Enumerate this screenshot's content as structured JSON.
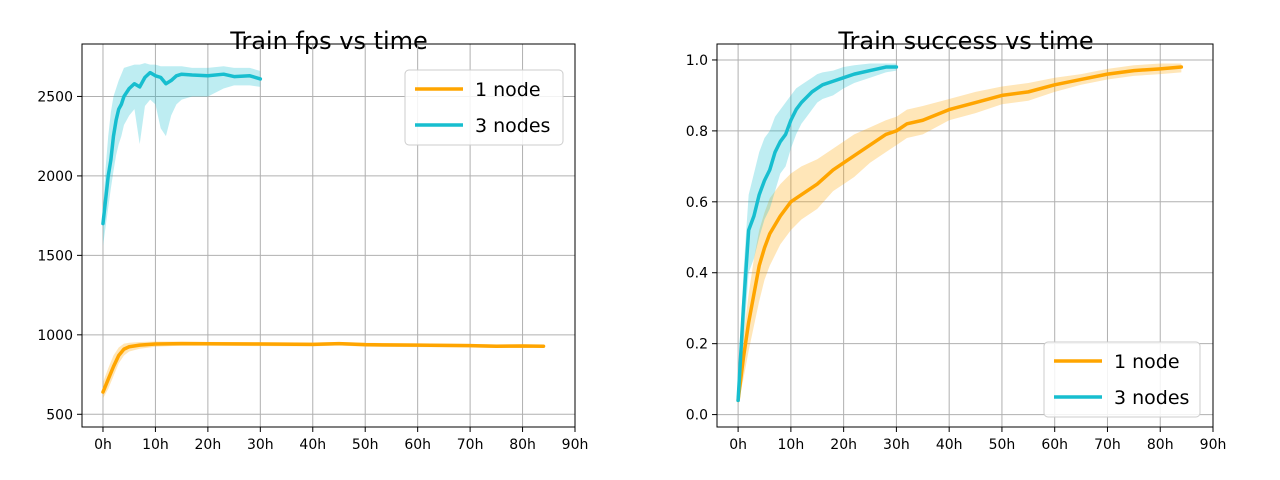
{
  "chart_data": [
    {
      "type": "line",
      "title": "Train fps vs time",
      "xlabel": "",
      "ylabel": "",
      "xlim": [
        -4,
        90
      ],
      "ylim": [
        420,
        2830
      ],
      "xticks": [
        0,
        10,
        20,
        30,
        40,
        50,
        60,
        70,
        80,
        90
      ],
      "xtick_labels": [
        "0h",
        "10h",
        "20h",
        "30h",
        "40h",
        "50h",
        "60h",
        "70h",
        "80h",
        "90h"
      ],
      "yticks": [
        500,
        1000,
        1500,
        2000,
        2500
      ],
      "ytick_labels": [
        "500",
        "1000",
        "1500",
        "2000",
        "2500"
      ],
      "grid": true,
      "legend_position": "top-right",
      "series": [
        {
          "name": "1 node",
          "color": "#ffa500",
          "x": [
            0,
            1,
            2,
            3,
            4,
            5,
            7,
            10,
            15,
            20,
            30,
            40,
            45,
            50,
            60,
            70,
            75,
            80,
            84
          ],
          "y": [
            640,
            720,
            800,
            870,
            910,
            925,
            935,
            942,
            945,
            944,
            942,
            940,
            945,
            938,
            935,
            932,
            928,
            930,
            928
          ],
          "band_upper": [
            700,
            790,
            870,
            920,
            945,
            950,
            955,
            958,
            958,
            956,
            954,
            952,
            955,
            950,
            946,
            943,
            940,
            941,
            938
          ],
          "band_lower": [
            600,
            660,
            740,
            820,
            870,
            895,
            912,
            925,
            932,
            931,
            929,
            927,
            933,
            925,
            923,
            920,
            917,
            919,
            918
          ]
        },
        {
          "name": "3 nodes",
          "color": "#17becf",
          "x": [
            0,
            0.5,
            1,
            1.5,
            2,
            2.5,
            3,
            3.5,
            4,
            5,
            6,
            7,
            8,
            9,
            10,
            11,
            12,
            13,
            14,
            15,
            17,
            20,
            23,
            25,
            28,
            30
          ],
          "y": [
            1700,
            1850,
            2000,
            2100,
            2250,
            2350,
            2420,
            2450,
            2500,
            2550,
            2580,
            2560,
            2620,
            2650,
            2630,
            2620,
            2580,
            2600,
            2630,
            2640,
            2635,
            2630,
            2640,
            2625,
            2630,
            2610
          ],
          "band_upper": [
            1800,
            2050,
            2250,
            2400,
            2500,
            2550,
            2600,
            2640,
            2680,
            2690,
            2700,
            2700,
            2710,
            2700,
            2700,
            2690,
            2690,
            2690,
            2690,
            2690,
            2680,
            2680,
            2690,
            2680,
            2680,
            2660
          ],
          "band_lower": [
            1560,
            1680,
            1800,
            1920,
            2030,
            2130,
            2200,
            2250,
            2320,
            2380,
            2420,
            2200,
            2440,
            2480,
            2450,
            2300,
            2250,
            2380,
            2450,
            2480,
            2500,
            2500,
            2550,
            2570,
            2570,
            2560
          ]
        }
      ]
    },
    {
      "type": "line",
      "title": "Train success vs time",
      "xlabel": "",
      "ylabel": "",
      "xlim": [
        -4,
        90
      ],
      "ylim": [
        -0.035,
        1.045
      ],
      "xticks": [
        0,
        10,
        20,
        30,
        40,
        50,
        60,
        70,
        80,
        90
      ],
      "xtick_labels": [
        "0h",
        "10h",
        "20h",
        "30h",
        "40h",
        "50h",
        "60h",
        "70h",
        "80h",
        "90h"
      ],
      "yticks": [
        0.0,
        0.2,
        0.4,
        0.6,
        0.8,
        1.0
      ],
      "ytick_labels": [
        "0.0",
        "0.2",
        "0.4",
        "0.6",
        "0.8",
        "1.0"
      ],
      "grid": true,
      "legend_position": "bottom-right",
      "series": [
        {
          "name": "1 node",
          "color": "#ffa500",
          "x": [
            0,
            1,
            2,
            3,
            4,
            5,
            6,
            8,
            10,
            12,
            15,
            18,
            20,
            22,
            25,
            28,
            30,
            32,
            35,
            40,
            45,
            50,
            55,
            60,
            65,
            70,
            75,
            80,
            84
          ],
          "y": [
            0.04,
            0.16,
            0.26,
            0.34,
            0.42,
            0.47,
            0.51,
            0.56,
            0.6,
            0.62,
            0.65,
            0.69,
            0.71,
            0.73,
            0.76,
            0.79,
            0.8,
            0.82,
            0.83,
            0.86,
            0.88,
            0.9,
            0.91,
            0.93,
            0.945,
            0.96,
            0.97,
            0.975,
            0.98
          ],
          "band_upper": [
            0.06,
            0.22,
            0.34,
            0.44,
            0.52,
            0.57,
            0.61,
            0.65,
            0.68,
            0.7,
            0.72,
            0.75,
            0.77,
            0.79,
            0.81,
            0.83,
            0.84,
            0.86,
            0.87,
            0.89,
            0.91,
            0.925,
            0.935,
            0.95,
            0.96,
            0.975,
            0.985,
            0.99,
            0.99
          ],
          "band_lower": [
            0.03,
            0.1,
            0.18,
            0.25,
            0.32,
            0.38,
            0.42,
            0.48,
            0.52,
            0.55,
            0.58,
            0.63,
            0.65,
            0.67,
            0.71,
            0.74,
            0.76,
            0.78,
            0.79,
            0.83,
            0.85,
            0.875,
            0.885,
            0.91,
            0.93,
            0.945,
            0.955,
            0.96,
            0.965
          ]
        },
        {
          "name": "3 nodes",
          "color": "#17becf",
          "x": [
            0,
            1,
            2,
            3,
            4,
            5,
            6,
            7,
            8,
            9,
            10,
            11,
            12,
            13,
            14,
            15,
            16,
            18,
            20,
            22,
            25,
            28,
            30
          ],
          "y": [
            0.04,
            0.3,
            0.52,
            0.56,
            0.62,
            0.66,
            0.69,
            0.74,
            0.77,
            0.79,
            0.83,
            0.86,
            0.88,
            0.895,
            0.91,
            0.92,
            0.93,
            0.94,
            0.95,
            0.96,
            0.97,
            0.98,
            0.98
          ],
          "band_upper": [
            0.06,
            0.4,
            0.62,
            0.68,
            0.74,
            0.78,
            0.8,
            0.84,
            0.86,
            0.88,
            0.9,
            0.92,
            0.93,
            0.94,
            0.95,
            0.96,
            0.965,
            0.97,
            0.98,
            0.985,
            0.99,
            0.99,
            0.99
          ],
          "band_lower": [
            0.03,
            0.2,
            0.4,
            0.44,
            0.5,
            0.55,
            0.58,
            0.63,
            0.68,
            0.7,
            0.75,
            0.79,
            0.82,
            0.84,
            0.86,
            0.88,
            0.89,
            0.9,
            0.92,
            0.935,
            0.95,
            0.965,
            0.97
          ]
        }
      ]
    }
  ]
}
